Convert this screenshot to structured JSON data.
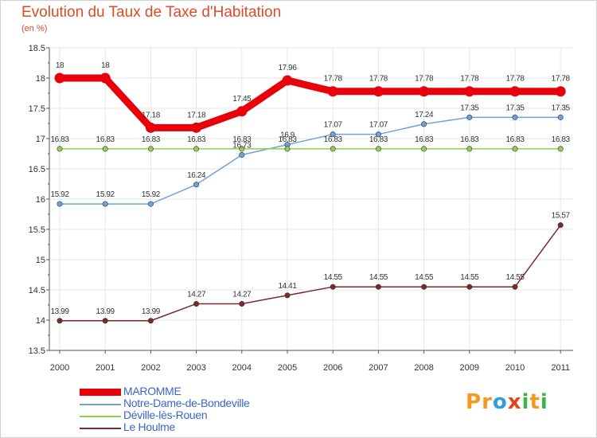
{
  "title": "Evolution du Taux de Taxe d'Habitation",
  "subtitle": "(en %)",
  "logo": {
    "letters": [
      "P",
      "r",
      "o",
      "x",
      "i",
      "t",
      "i"
    ],
    "colors": [
      "#f39a1e",
      "#f39a1e",
      "#2e9fd8",
      "#e8441c",
      "#3bb54a",
      "#f39a1e",
      "#3bb54a"
    ]
  },
  "chart_data": {
    "type": "line",
    "x": [
      "2000",
      "2001",
      "2002",
      "2003",
      "2004",
      "2005",
      "2006",
      "2007",
      "2008",
      "2009",
      "2010",
      "2011"
    ],
    "ylim": [
      13.5,
      18.5
    ],
    "yticks": [
      "13.5",
      "14",
      "14.5",
      "15",
      "15.5",
      "16",
      "16.5",
      "17",
      "17.5",
      "18",
      "18.5"
    ],
    "grid": true,
    "legend_position": "bottom-left",
    "series": [
      {
        "name": "MAROMME",
        "color": "#e8000b",
        "width": 9,
        "values": [
          18,
          18,
          17.18,
          17.18,
          17.45,
          17.96,
          17.78,
          17.78,
          17.78,
          17.78,
          17.78,
          17.78
        ],
        "labels": [
          "18",
          "18",
          "17.18",
          "17.18",
          "17.45",
          "17.96",
          "17.78",
          "17.78",
          "17.78",
          "17.78",
          "17.78",
          "17.78"
        ]
      },
      {
        "name": "Notre-Dame-de-Bondeville",
        "color": "#6fa3d8",
        "width": 1.5,
        "values": [
          15.92,
          15.92,
          15.92,
          16.24,
          16.73,
          16.9,
          17.07,
          17.07,
          17.24,
          17.35,
          17.35,
          17.35
        ],
        "labels": [
          "15.92",
          "15.92",
          "15.92",
          "16.24",
          "16.73",
          "16.9",
          "17.07",
          "17.07",
          "17.24",
          "17.35",
          "17.35",
          "17.35"
        ]
      },
      {
        "name": "Déville-lès-Rouen",
        "color": "#8fd14f",
        "width": 1.5,
        "values": [
          16.83,
          16.83,
          16.83,
          16.83,
          16.83,
          16.83,
          16.83,
          16.83,
          16.83,
          16.83,
          16.83,
          16.83
        ],
        "labels": [
          "16.83",
          "16.83",
          "16.83",
          "16.83",
          "16.83",
          "16.83",
          "16.83",
          "16.83",
          "16.83",
          "16.83",
          "16.83",
          "16.83"
        ]
      },
      {
        "name": "Le Houlme",
        "color": "#7a2a2a",
        "width": 1.5,
        "values": [
          13.99,
          13.99,
          13.99,
          14.27,
          14.27,
          14.41,
          14.55,
          14.55,
          14.55,
          14.55,
          14.55,
          15.57
        ],
        "labels": [
          "13.99",
          "13.99",
          "13.99",
          "14.27",
          "14.27",
          "14.41",
          "14.55",
          "14.55",
          "14.55",
          "14.55",
          "14.55",
          "15.57"
        ]
      }
    ]
  }
}
